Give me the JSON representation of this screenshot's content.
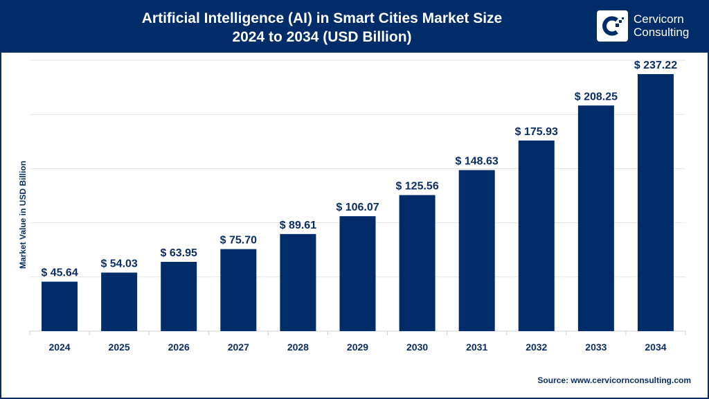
{
  "header": {
    "title_line1": "Artificial Intelligence (AI) in Smart Cities Market Size",
    "title_line2": "2024 to 2034 (USD Billion)",
    "logo_line1": "Cervicorn",
    "logo_line2": "Consulting"
  },
  "source": "Source: www.cervicornconsulting.com",
  "colors": {
    "bar": "#002d6a",
    "header": "#002d6a",
    "grid": "#e3e3e3"
  },
  "chart_data": {
    "type": "bar",
    "title": "Artificial Intelligence (AI) in Smart Cities Market Size 2024 to 2034 (USD Billion)",
    "xlabel": "",
    "ylabel": "Market Value in USD Billion",
    "categories": [
      "2024",
      "2025",
      "2026",
      "2027",
      "2028",
      "2029",
      "2030",
      "2031",
      "2032",
      "2033",
      "2034"
    ],
    "values": [
      45.64,
      54.03,
      63.95,
      75.7,
      89.61,
      106.07,
      125.56,
      148.63,
      175.93,
      208.25,
      237.22
    ],
    "data_labels": [
      "$ 45.64",
      "$ 54.03",
      "$ 63.95",
      "$ 75.70",
      "$ 89.61",
      "$ 106.07",
      "$ 125.56",
      "$ 148.63",
      "$ 175.93",
      "$ 208.25",
      "$ 237.22"
    ],
    "ylim": [
      0,
      250
    ],
    "grid": true,
    "y_ticks_shown": false,
    "legend": "none"
  }
}
